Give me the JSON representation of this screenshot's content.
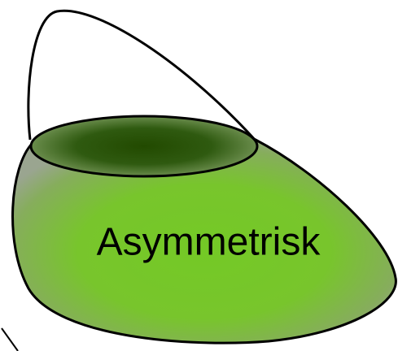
{
  "label": "Asymmetrisk"
}
